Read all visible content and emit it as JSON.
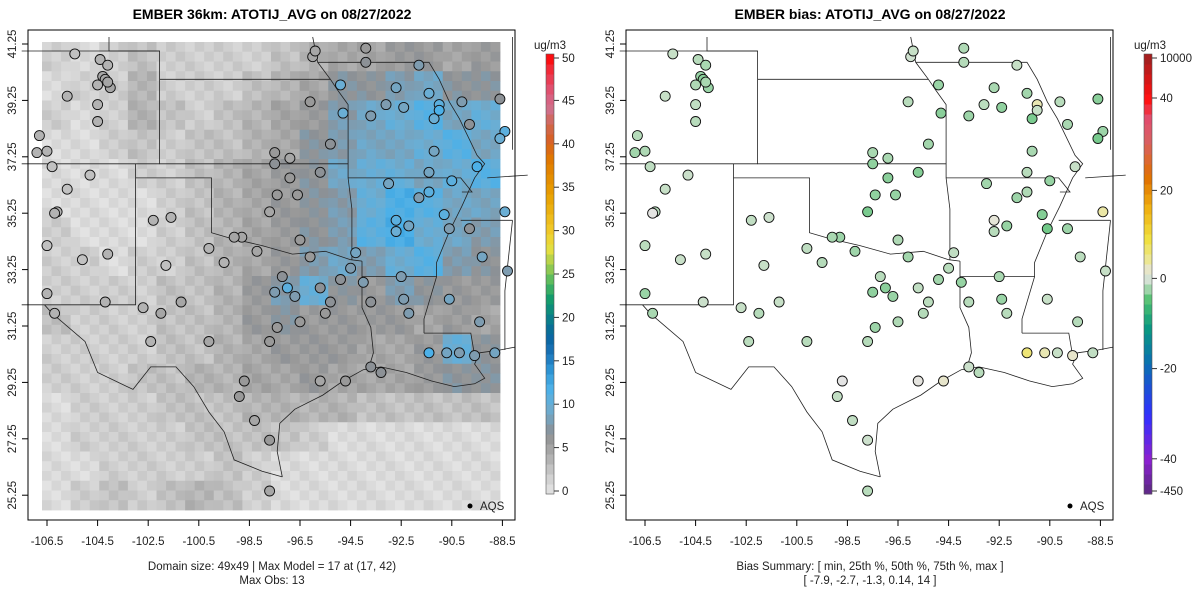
{
  "panels": [
    {
      "title": "EMBER 36km: ATOTIJ_AVG on 08/27/2022",
      "colorbar": {
        "unit": "ug/m3",
        "ticks": [
          "50",
          "45",
          "40",
          "35",
          "30",
          "25",
          "20",
          "15",
          "10",
          "5",
          "0"
        ],
        "min": 0,
        "max": 50
      },
      "footer": [
        "Domain size: 49x49 | Max Model = 17 at (17, 42)",
        "Max Obs: 13"
      ],
      "legend": "AQS"
    },
    {
      "title": "EMBER bias: ATOTIJ_AVG on 08/27/2022",
      "colorbar": {
        "unit": "ug/m3",
        "ticks": [
          "10000",
          "40",
          "20",
          "0",
          "-20",
          "-40",
          "-450"
        ]
      },
      "footer": [
        "Bias Summary: [ min, 25th %, 50th %, 75th %, max ]",
        "[ -7.9,   -2.7,   -1.3,   0.14,   14 ]"
      ],
      "legend": "AQS"
    }
  ],
  "axes": {
    "x_ticks": [
      "-106.5",
      "-104.5",
      "-102.5",
      "-100.5",
      "-98.5",
      "-96.5",
      "-94.5",
      "-92.5",
      "-90.5",
      "-88.5"
    ],
    "y_ticks": [
      "41.25",
      "39.25",
      "37.25",
      "35.25",
      "33.25",
      "31.25",
      "29.25",
      "27.25",
      "25.25"
    ]
  },
  "model_grid_coarse": [
    [
      2,
      1,
      2,
      3,
      2,
      2,
      2,
      2,
      3,
      4,
      5,
      5,
      6,
      6,
      5,
      6
    ],
    [
      1,
      2,
      2,
      4,
      2,
      2,
      2,
      3,
      4,
      5,
      7,
      7,
      8,
      9,
      7,
      7
    ],
    [
      2,
      1,
      2,
      4,
      3,
      2,
      3,
      4,
      5,
      6,
      8,
      9,
      10,
      11,
      9,
      10
    ],
    [
      1,
      1,
      2,
      3,
      2,
      3,
      3,
      4,
      5,
      7,
      8,
      9,
      9,
      10,
      11,
      9
    ],
    [
      1,
      1,
      1,
      2,
      2,
      3,
      4,
      5,
      6,
      7,
      9,
      10,
      10,
      9,
      10,
      11
    ],
    [
      1,
      1,
      1,
      1,
      2,
      3,
      4,
      5,
      6,
      7,
      8,
      10,
      12,
      11,
      9,
      9
    ],
    [
      2,
      1,
      1,
      1,
      2,
      3,
      4,
      5,
      6,
      7,
      8,
      11,
      12,
      10,
      9,
      8
    ],
    [
      2,
      2,
      1,
      2,
      2,
      3,
      4,
      5,
      6,
      8,
      9,
      8,
      10,
      11,
      8,
      7
    ],
    [
      2,
      2,
      2,
      2,
      3,
      3,
      4,
      6,
      8,
      10,
      7,
      6,
      8,
      7,
      6,
      6
    ],
    [
      3,
      2,
      2,
      2,
      3,
      3,
      4,
      6,
      7,
      6,
      6,
      6,
      6,
      5,
      6,
      5
    ],
    [
      2,
      2,
      2,
      2,
      3,
      3,
      4,
      5,
      6,
      6,
      6,
      5,
      5,
      6,
      10,
      7
    ],
    [
      2,
      2,
      2,
      3,
      3,
      4,
      4,
      5,
      5,
      6,
      5,
      5,
      5,
      6,
      7,
      7
    ],
    [
      1,
      2,
      2,
      2,
      3,
      3,
      3,
      4,
      4,
      4,
      4,
      3,
      3,
      3,
      3,
      3
    ],
    [
      1,
      2,
      2,
      2,
      2,
      3,
      3,
      3,
      3,
      2,
      1,
      1,
      1,
      1,
      1,
      1
    ],
    [
      1,
      1,
      2,
      2,
      2,
      2,
      3,
      2,
      1,
      1,
      1,
      1,
      1,
      1,
      1,
      1
    ],
    [
      1,
      2,
      3,
      2,
      3,
      4,
      3,
      2,
      1,
      1,
      1,
      1,
      1,
      1,
      1,
      1
    ]
  ],
  "stations": [
    [
      -104.4,
      40.7,
      4,
      -1.5
    ],
    [
      -105.4,
      40.9,
      3,
      -1
    ],
    [
      -104.1,
      40.5,
      4,
      -2
    ],
    [
      -104.3,
      40.1,
      5,
      -2.5
    ],
    [
      -104.2,
      40.0,
      5,
      -3
    ],
    [
      -104.0,
      39.7,
      5,
      -2.5
    ],
    [
      -104.5,
      39.8,
      4,
      -1.8
    ],
    [
      -104.1,
      39.9,
      5,
      -2
    ],
    [
      -105.7,
      39.4,
      4,
      -1
    ],
    [
      -104.5,
      38.5,
      4,
      -1.5
    ],
    [
      -104.5,
      39.1,
      4,
      -1.2
    ],
    [
      -106.8,
      38.0,
      4,
      -1.6
    ],
    [
      -106.9,
      37.4,
      4,
      -2.2
    ],
    [
      -106.5,
      37.45,
      4,
      -1.8
    ],
    [
      -106.3,
      36.9,
      3,
      -1.3
    ],
    [
      -104.8,
      36.6,
      3,
      -0.8
    ],
    [
      -105.7,
      36.1,
      3,
      -1
    ],
    [
      -106.1,
      35.3,
      4,
      -1.5
    ],
    [
      -106.2,
      35.25,
      4,
      1.1
    ],
    [
      -106.5,
      34.1,
      3,
      -1.4
    ],
    [
      -105.1,
      33.6,
      3,
      -0.9
    ],
    [
      -104.1,
      33.8,
      4,
      -1
    ],
    [
      -102.3,
      35.0,
      4,
      -1.2
    ],
    [
      -101.6,
      35.1,
      4,
      -0.6
    ],
    [
      -101.8,
      33.4,
      3,
      -1
    ],
    [
      -100.1,
      34.0,
      4,
      -1.3
    ],
    [
      -99.5,
      33.5,
      4,
      -1.6
    ],
    [
      -98.8,
      34.4,
      5,
      -2.4
    ],
    [
      -97.7,
      35.3,
      5,
      -3.5
    ],
    [
      -97.4,
      35.9,
      6,
      -2.8
    ],
    [
      -96.6,
      35.9,
      6,
      -2.6
    ],
    [
      -96.9,
      36.5,
      6,
      -3
    ],
    [
      -96.9,
      37.2,
      5,
      -2
    ],
    [
      -95.7,
      36.7,
      7,
      -3.2
    ],
    [
      -95.3,
      37.7,
      7,
      -2.2
    ],
    [
      -96.1,
      39.2,
      6,
      -1.5
    ],
    [
      -96.0,
      40.8,
      5,
      -0.5
    ],
    [
      -95.9,
      41.0,
      5,
      -1
    ],
    [
      -94.9,
      39.8,
      10,
      -2.5
    ],
    [
      -93.9,
      41.1,
      6,
      -1.8
    ],
    [
      -93.9,
      40.6,
      7,
      -1.6
    ],
    [
      -94.8,
      38.8,
      10,
      -3
    ],
    [
      -93.7,
      38.7,
      8,
      -2.4
    ],
    [
      -93.1,
      39.1,
      8,
      -1.4
    ],
    [
      -92.7,
      39.7,
      9,
      -2
    ],
    [
      -92.4,
      39.0,
      9,
      -2.8
    ],
    [
      -91.8,
      40.5,
      8,
      -1
    ],
    [
      -91.2,
      38.6,
      10,
      -3.5
    ],
    [
      -91.2,
      37.45,
      9,
      -2
    ],
    [
      -91.0,
      39.1,
      11,
      3
    ],
    [
      -91.0,
      38.9,
      12,
      -1
    ],
    [
      -91.4,
      39.5,
      10,
      -2.2
    ],
    [
      -90.1,
      39.2,
      8,
      -1.5
    ],
    [
      -89.8,
      38.4,
      7,
      -2
    ],
    [
      -88.6,
      39.3,
      7,
      -3
    ],
    [
      -88.4,
      38.15,
      11,
      -2.4
    ],
    [
      -88.6,
      37.9,
      10,
      -3.6
    ],
    [
      -89.5,
      36.9,
      12,
      -1
    ],
    [
      -90.5,
      36.4,
      11,
      -2.6
    ],
    [
      -91.4,
      36.0,
      11,
      -1.8
    ],
    [
      -91.8,
      35.8,
      8,
      -2.4
    ],
    [
      -91.4,
      36.7,
      9,
      -1.5
    ],
    [
      -93.0,
      36.3,
      9,
      -2.2
    ],
    [
      -92.7,
      35.0,
      11,
      1.5
    ],
    [
      -90.8,
      35.2,
      11,
      -3.2
    ],
    [
      -90.6,
      34.7,
      8,
      -3.8
    ],
    [
      -89.8,
      34.7,
      7,
      -2.4
    ],
    [
      -88.4,
      35.3,
      10,
      3.5
    ],
    [
      -89.3,
      33.7,
      9,
      -1.4
    ],
    [
      -88.3,
      33.2,
      8,
      -1
    ],
    [
      -89.4,
      31.4,
      8,
      -1.6
    ],
    [
      -91.4,
      30.3,
      12,
      6
    ],
    [
      -90.7,
      30.3,
      9,
      3
    ],
    [
      -90.2,
      30.3,
      8,
      -1
    ],
    [
      -89.6,
      30.2,
      8,
      2
    ],
    [
      -88.8,
      30.3,
      9,
      -1.2
    ],
    [
      -93.3,
      29.6,
      7,
      -1.5
    ],
    [
      -93.7,
      29.8,
      7,
      -0.8
    ],
    [
      -94.7,
      29.3,
      6,
      2
    ],
    [
      -95.7,
      29.3,
      5,
      1.2
    ],
    [
      -97.0,
      32.6,
      11,
      -3
    ],
    [
      -96.7,
      32.3,
      8,
      -2.5
    ],
    [
      -97.5,
      32.45,
      8,
      -2.8
    ],
    [
      -97.2,
      33.0,
      7,
      -1.5
    ],
    [
      -95.7,
      32.6,
      7,
      -1.2
    ],
    [
      -94.9,
      32.9,
      7,
      -2.2
    ],
    [
      -94.0,
      32.8,
      8,
      -2.6
    ],
    [
      -93.7,
      32.1,
      7,
      -1.5
    ],
    [
      -92.5,
      33.0,
      8,
      -2
    ],
    [
      -92.4,
      32.2,
      8,
      -2.5
    ],
    [
      -90.6,
      32.2,
      9,
      -1
    ],
    [
      -92.2,
      31.7,
      8,
      -1.5
    ],
    [
      -96.5,
      31.4,
      6,
      -1.8
    ],
    [
      -97.4,
      31.2,
      6,
      -2.4
    ],
    [
      -97.7,
      30.7,
      6,
      -1.6
    ],
    [
      -98.7,
      29.3,
      6,
      1
    ],
    [
      -98.9,
      28.75,
      6,
      -1.2
    ],
    [
      -100.1,
      30.7,
      5,
      -1.5
    ],
    [
      -101.2,
      32.1,
      5,
      -1
    ],
    [
      -102.4,
      30.7,
      4,
      -1.4
    ],
    [
      -102.7,
      31.9,
      4,
      -1
    ],
    [
      -102.0,
      31.7,
      5,
      -1.6
    ],
    [
      -104.2,
      32.1,
      4,
      -0.8
    ],
    [
      -106.5,
      32.4,
      4,
      -2.5
    ],
    [
      -106.2,
      31.7,
      4,
      -2
    ],
    [
      -98.3,
      27.9,
      5,
      -1.2
    ],
    [
      -97.7,
      27.2,
      6,
      -0.6
    ],
    [
      -97.7,
      25.4,
      5,
      -1.5
    ],
    [
      -99.1,
      34.4,
      5,
      -2
    ],
    [
      -98.2,
      33.9,
      5,
      -2.3
    ],
    [
      -97.5,
      37.0,
      7,
      -2.8
    ],
    [
      -97.5,
      37.4,
      6,
      -2
    ],
    [
      -96.1,
      33.7,
      6,
      -2.2
    ],
    [
      -96.5,
      34.3,
      6,
      -1.8
    ],
    [
      -94.5,
      33.3,
      8,
      -1.5
    ],
    [
      -94.3,
      33.85,
      9,
      -1.2
    ],
    [
      -92.7,
      34.6,
      10,
      -1.5
    ],
    [
      -92.2,
      34.8,
      9,
      -2.6
    ],
    [
      -95.3,
      32.1,
      7,
      -1.4
    ],
    [
      -95.5,
      31.7,
      6,
      -1.6
    ]
  ]
}
